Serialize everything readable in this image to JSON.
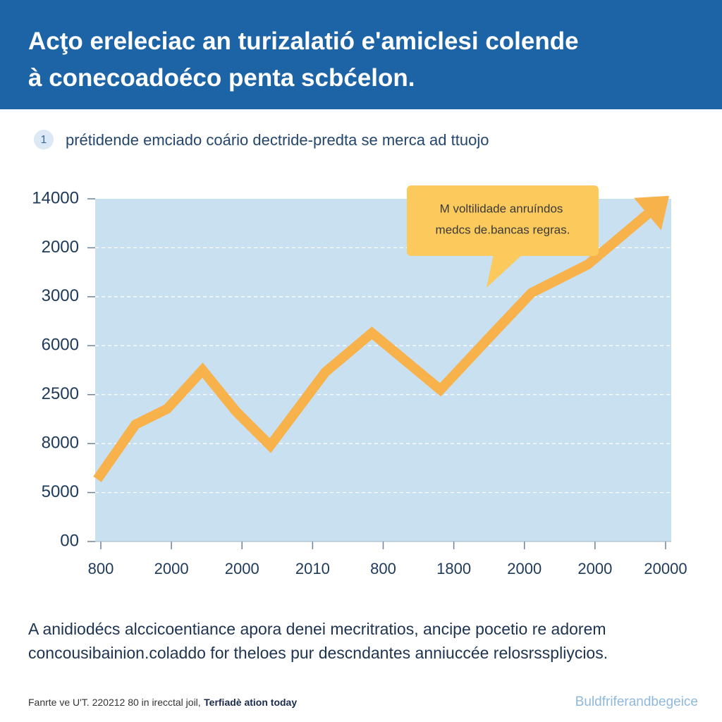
{
  "chart_data": {
    "type": "line",
    "title": [
      "Acţo ereleciac an turizalatió e'amiclesi colende",
      "à conecoadoéco penta scbćelon."
    ],
    "badge": "1",
    "subtitle": "prétidende emciado coário dectride-predta se merca ad ttuojo",
    "annotation": [
      "M voltilidade anruíndos",
      "medcs de.bancas regras."
    ],
    "caption": [
      "A anidiodécs alccicoentiance apora denei mecritratios, ancipe pocetio re adorem",
      "concousibainion.coladdo for theloes pur descndantes anniuccée relosrsspliycios."
    ],
    "footnote": "Fanrte ve U'T. 220212 80 in irecctal joil,",
    "footnote_bold": "Terfiadè ation today",
    "credit": "Buldfriferandbegeice",
    "color": "#f7b24c",
    "x": [
      -0.05,
      0.49,
      0.94,
      1.44,
      1.92,
      2.4,
      3.18,
      3.84,
      4.81,
      5.51,
      6.1,
      6.9,
      8.05
    ],
    "values": [
      1.27,
      2.39,
      2.71,
      3.5,
      2.65,
      1.96,
      3.46,
      4.26,
      3.1,
      4.18,
      5.08,
      5.66,
      7.06
    ],
    "xlim": [
      -0.08,
      8.08
    ],
    "ylim": [
      0,
      7
    ],
    "xticks": [
      {
        "value": 0,
        "label": "800"
      },
      {
        "value": 1,
        "label": "2000"
      },
      {
        "value": 2,
        "label": "2000"
      },
      {
        "value": 3,
        "label": "2010"
      },
      {
        "value": 4,
        "label": "800"
      },
      {
        "value": 5,
        "label": "1800"
      },
      {
        "value": 6,
        "label": "2000"
      },
      {
        "value": 7,
        "label": "2000"
      },
      {
        "value": 8,
        "label": "20000"
      }
    ],
    "yticks": [
      {
        "value": 0,
        "label": "00"
      },
      {
        "value": 1,
        "label": "5000"
      },
      {
        "value": 2,
        "label": "8000"
      },
      {
        "value": 3,
        "label": "2500"
      },
      {
        "value": 4,
        "label": "6000"
      },
      {
        "value": 5,
        "label": "3000"
      },
      {
        "value": 6,
        "label": "2000"
      },
      {
        "value": 7,
        "label": "14000"
      }
    ],
    "grid": true
  }
}
